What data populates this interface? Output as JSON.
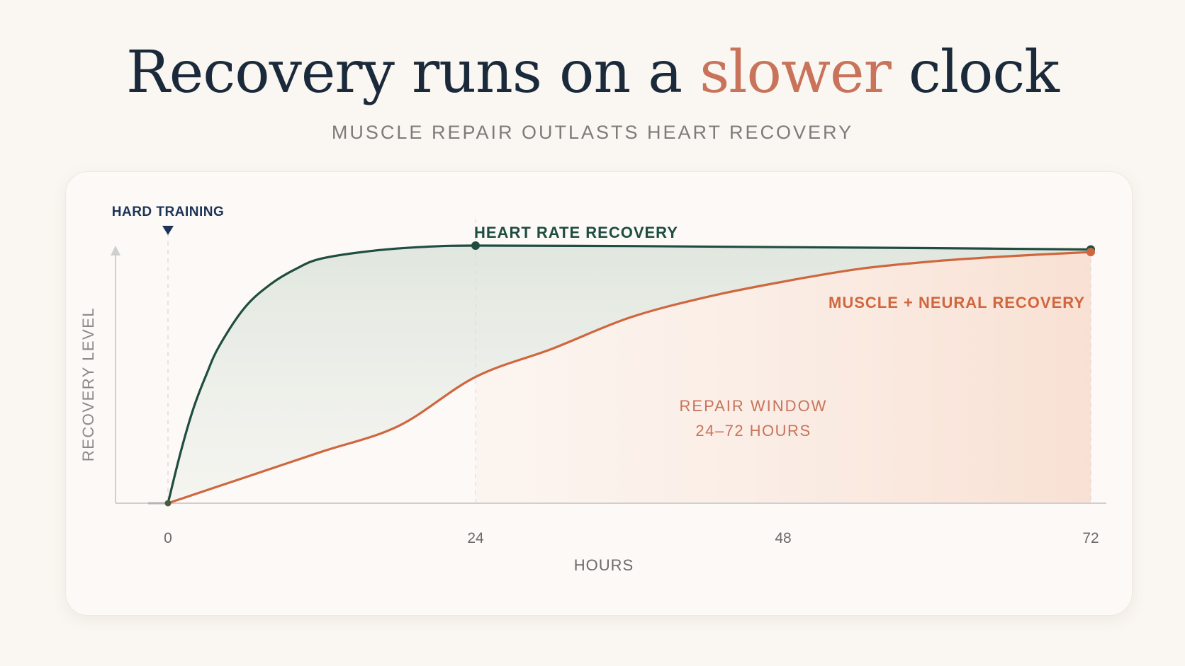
{
  "header": {
    "title_part1": "Recovery runs on a ",
    "title_accent": "slower",
    "title_part2": " clock",
    "subtitle": "MUSCLE REPAIR OUTLASTS HEART RECOVERY"
  },
  "colors": {
    "heart": "#1f4d3f",
    "muscle": "#d0663e",
    "title": "#1b2a3b",
    "accent": "#c8735a",
    "window_text": "#c8735a"
  },
  "chart_data": {
    "type": "line",
    "xlabel": "HOURS",
    "ylabel": "RECOVERY LEVEL",
    "xlim": [
      0,
      72
    ],
    "ylim": [
      0,
      1
    ],
    "x_ticks": [
      "0",
      "24",
      "48",
      "72"
    ],
    "y_axis_numbers_shown": false,
    "grid": false,
    "series": [
      {
        "name": "HEART RATE RECOVERY",
        "color": "#1f4d3f",
        "points": [
          [
            0,
            0
          ],
          [
            1,
            0.2
          ],
          [
            2,
            0.37
          ],
          [
            3,
            0.5
          ],
          [
            4,
            0.61
          ],
          [
            6,
            0.76
          ],
          [
            8,
            0.85
          ],
          [
            10,
            0.91
          ],
          [
            12,
            0.95
          ],
          [
            16,
            0.98
          ],
          [
            20,
            0.995
          ],
          [
            24,
            1.0
          ],
          [
            36,
            0.998
          ],
          [
            48,
            0.994
          ],
          [
            60,
            0.99
          ],
          [
            72,
            0.985
          ]
        ]
      },
      {
        "name": "MUSCLE + NEURAL RECOVERY",
        "color": "#d0663e",
        "points": [
          [
            0,
            0
          ],
          [
            6,
            0.1
          ],
          [
            12,
            0.2
          ],
          [
            18,
            0.3
          ],
          [
            24,
            0.49
          ],
          [
            30,
            0.6
          ],
          [
            36,
            0.72
          ],
          [
            42,
            0.8
          ],
          [
            48,
            0.86
          ],
          [
            54,
            0.91
          ],
          [
            60,
            0.94
          ],
          [
            66,
            0.96
          ],
          [
            72,
            0.975
          ]
        ]
      }
    ],
    "annotations": {
      "event": {
        "label": "HARD TRAINING",
        "x": 0
      },
      "window": {
        "line1": "REPAIR WINDOW",
        "line2": "24–72 HOURS",
        "x_start": 24,
        "x_end": 72
      },
      "markers": [
        {
          "series": "HEART RATE RECOVERY",
          "x": 24
        },
        {
          "series": "HEART RATE RECOVERY",
          "x": 72
        },
        {
          "series": "MUSCLE + NEURAL RECOVERY",
          "x": 72
        }
      ]
    }
  }
}
